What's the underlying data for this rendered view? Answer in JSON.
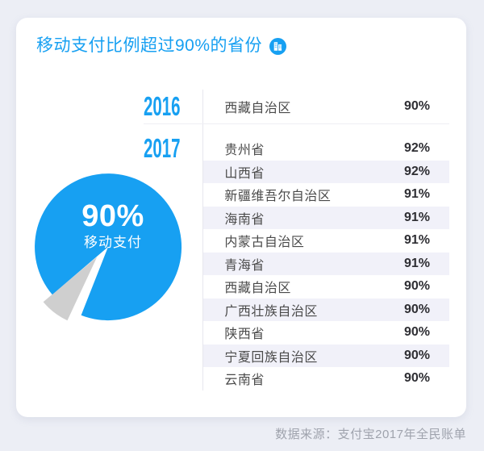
{
  "card": {
    "title": "移动支付比例超过90%的省份"
  },
  "icons": {
    "title_badge": "buildings-icon"
  },
  "colors": {
    "accent": "#17A0F2",
    "page_bg": "#ECEEF5",
    "card_bg": "#FFFFFF",
    "row_shade": "#F1F1F9",
    "slice_other": "#CFCFCF",
    "province_text": "#4A4A4A",
    "percent_text": "#2E2E33",
    "source_text": "#9FA3AD"
  },
  "chart_data": {
    "type": "pie",
    "title": "移动支付比例超过90%的省份",
    "center_label": "90%",
    "center_caption": "移动支付",
    "legend_position": "none",
    "slices": [
      {
        "label": "移动支付",
        "value": 90,
        "color": "#17A0F2"
      },
      {
        "label": "",
        "value": 10,
        "color": "#CFCFCF",
        "exploded": true
      }
    ]
  },
  "table": {
    "sections": [
      {
        "year": "2016",
        "rows": [
          {
            "province": "西藏自治区",
            "percent": "90%"
          }
        ]
      },
      {
        "year": "2017",
        "rows": [
          {
            "province": "贵州省",
            "percent": "92%"
          },
          {
            "province": "山西省",
            "percent": "92%"
          },
          {
            "province": "新疆维吾尔自治区",
            "percent": "91%"
          },
          {
            "province": "海南省",
            "percent": "91%"
          },
          {
            "province": "内蒙古自治区",
            "percent": "91%"
          },
          {
            "province": "青海省",
            "percent": "91%"
          },
          {
            "province": "西藏自治区",
            "percent": "90%"
          },
          {
            "province": "广西壮族自治区",
            "percent": "90%"
          },
          {
            "province": "陕西省",
            "percent": "90%"
          },
          {
            "province": "宁夏回族自治区",
            "percent": "90%"
          },
          {
            "province": "云南省",
            "percent": "90%"
          }
        ]
      }
    ]
  },
  "footer": {
    "source": "数据来源：支付宝2017年全民账单"
  }
}
